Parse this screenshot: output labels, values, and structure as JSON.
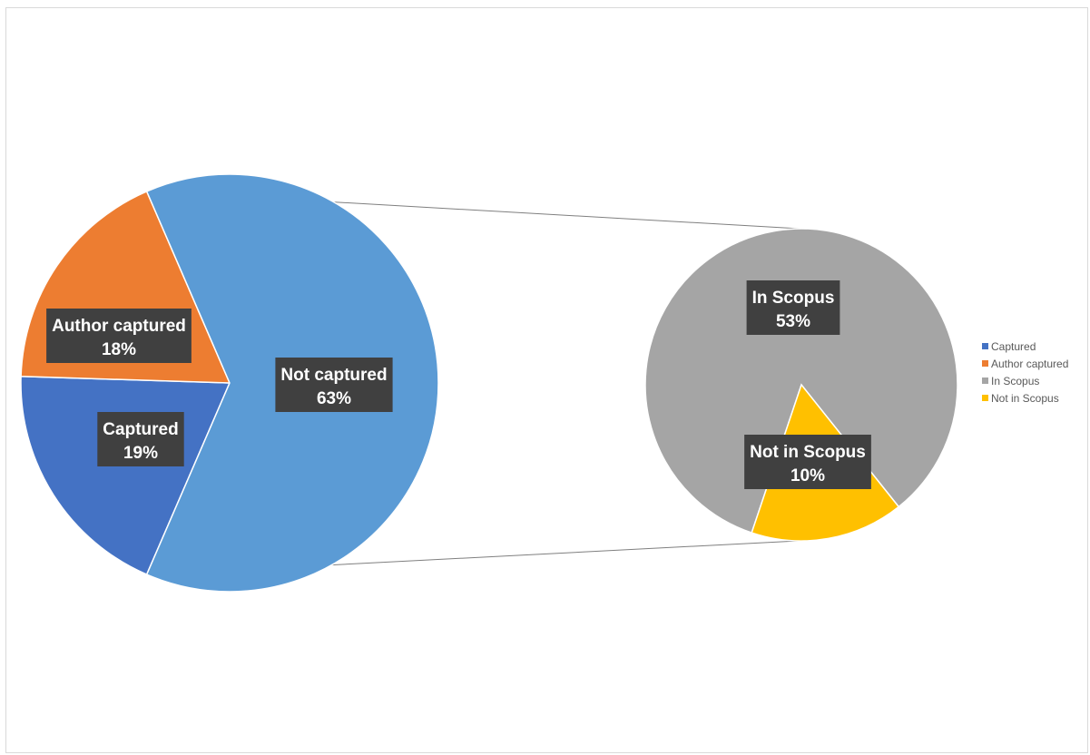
{
  "chart_data": {
    "type": "pie",
    "subtype": "pie-of-pie",
    "title": "",
    "primary_pie": {
      "slices": [
        {
          "label": "Captured",
          "value": 19,
          "display": "19%",
          "color": "#4472C4"
        },
        {
          "label": "Author captured",
          "value": 18,
          "display": "18%",
          "color": "#ED7D31"
        },
        {
          "label": "Not captured",
          "value": 63,
          "display": "63%",
          "color": "#5B9BD5"
        }
      ]
    },
    "secondary_pie": {
      "slices": [
        {
          "label": "In Scopus",
          "value": 53,
          "display": "53%",
          "color": "#A5A5A5"
        },
        {
          "label": "Not in Scopus",
          "value": 10,
          "display": "10%",
          "color": "#FFC000"
        }
      ]
    },
    "legend": {
      "position": "right",
      "items": [
        {
          "label": "Captured",
          "color": "#4472C4"
        },
        {
          "label": "Author captured",
          "color": "#ED7D31"
        },
        {
          "label": "In Scopus",
          "color": "#A5A5A5"
        },
        {
          "label": "Not in Scopus",
          "color": "#FFC000"
        }
      ]
    },
    "connector_color": "#7f7f7f"
  }
}
